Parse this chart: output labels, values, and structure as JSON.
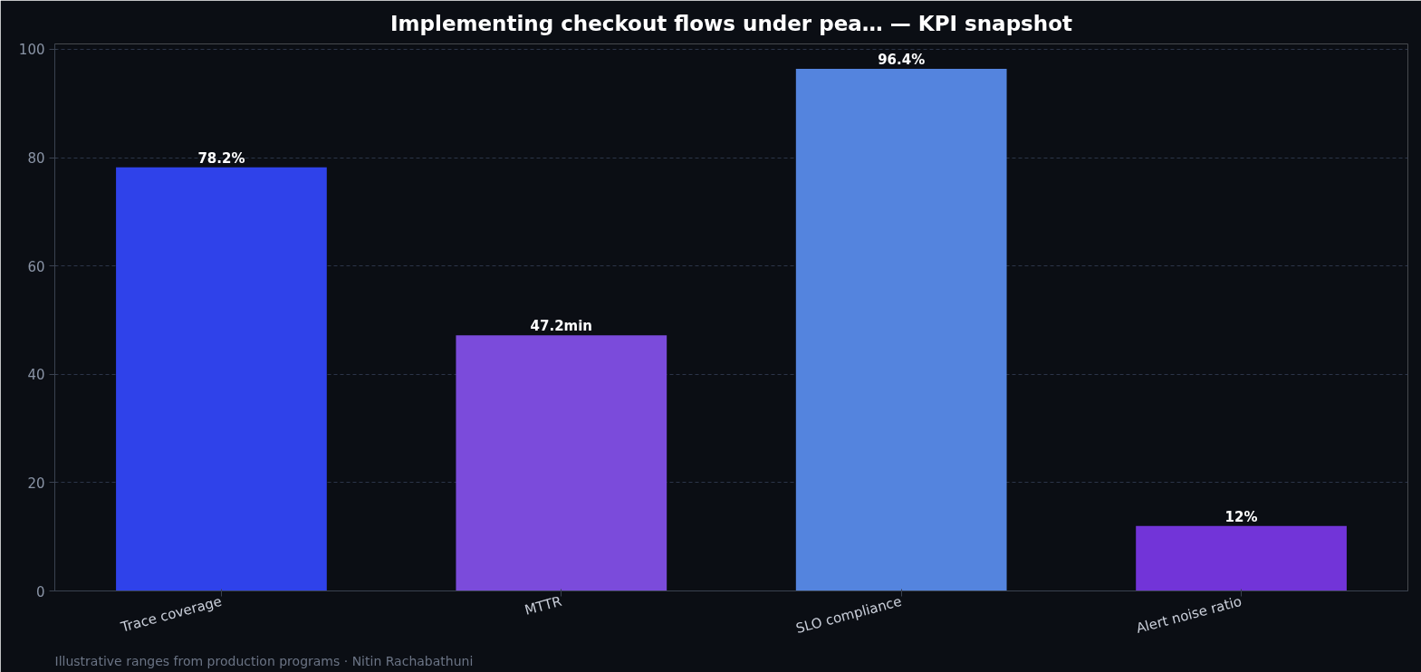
{
  "chart_data": {
    "type": "bar",
    "title": "Implementing checkout flows under pea… — KPI snapshot",
    "categories": [
      "Trace coverage",
      "MTTR",
      "SLO compliance",
      "Alert noise ratio"
    ],
    "values": [
      78.2,
      47.2,
      96.4,
      12
    ],
    "colors": [
      "#2f42ea",
      "#7b4bdb",
      "#5484de",
      "#7234d8"
    ],
    "value_labels": [
      "78.2%",
      "47.2min",
      "96.4%",
      "12%"
    ],
    "ylim": [
      0,
      101
    ],
    "yticks": [
      0,
      20,
      40,
      60,
      80,
      100
    ],
    "grid": "y",
    "annotations": [
      "Illustrative ranges from production programs · Nitin Rachabathuni"
    ]
  }
}
